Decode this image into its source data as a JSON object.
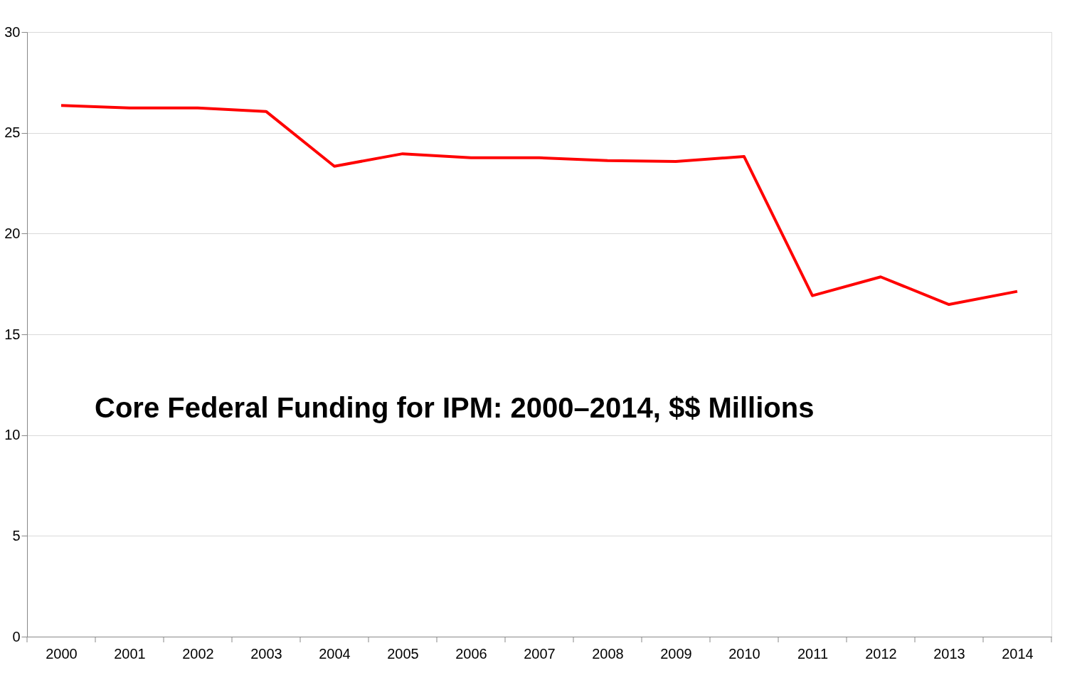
{
  "chart_data": {
    "type": "line",
    "title": "Core Federal Funding for IPM: 2000–2014, $$ Millions",
    "categories": [
      "2000",
      "2001",
      "2002",
      "2003",
      "2004",
      "2005",
      "2006",
      "2007",
      "2008",
      "2009",
      "2010",
      "2011",
      "2012",
      "2013",
      "2014"
    ],
    "series": [
      {
        "color": "#ff0000",
        "values": [
          26.36,
          26.23,
          26.23,
          26.06,
          23.34,
          23.96,
          23.76,
          23.76,
          23.62,
          23.58,
          23.82,
          16.92,
          17.85,
          16.48,
          17.13
        ]
      }
    ],
    "ylim": [
      0,
      30
    ],
    "yticks": [
      0,
      5,
      10,
      15,
      20,
      25,
      30
    ],
    "grid": "y",
    "marker": "none",
    "line_style": "solid"
  }
}
